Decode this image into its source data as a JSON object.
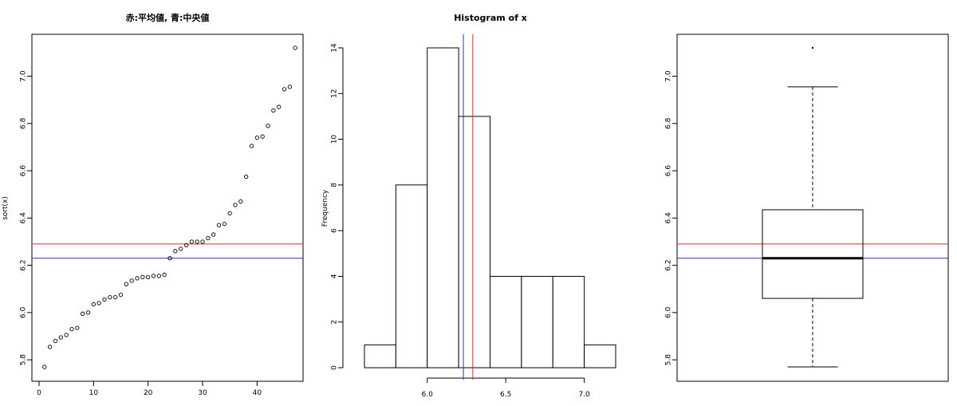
{
  "chart_data": [
    {
      "type": "scatter",
      "title": "赤:平均値, 青:中央値",
      "xlabel": "",
      "ylabel": "sort(x)",
      "xlim": [
        0,
        48
      ],
      "ylim": [
        5.77,
        7.12
      ],
      "x_ticks": [
        "0",
        "10",
        "20",
        "30",
        "40"
      ],
      "y_ticks": [
        "5.8",
        "6.0",
        "6.2",
        "6.4",
        "6.6",
        "6.8",
        "7.0"
      ],
      "x": [
        1,
        2,
        3,
        4,
        5,
        6,
        7,
        8,
        9,
        10,
        11,
        12,
        13,
        14,
        15,
        16,
        17,
        18,
        19,
        20,
        21,
        22,
        23,
        24,
        25,
        26,
        27,
        28,
        29,
        30,
        31,
        32,
        33,
        34,
        35,
        36,
        37,
        38,
        39,
        40,
        41,
        42,
        43,
        44,
        45,
        46,
        47
      ],
      "y": [
        5.77,
        5.855,
        5.88,
        5.895,
        5.905,
        5.93,
        5.935,
        5.995,
        6.0,
        6.035,
        6.04,
        6.055,
        6.065,
        6.065,
        6.075,
        6.12,
        6.135,
        6.145,
        6.15,
        6.15,
        6.155,
        6.155,
        6.16,
        6.23,
        6.26,
        6.27,
        6.285,
        6.3,
        6.3,
        6.3,
        6.315,
        6.33,
        6.37,
        6.375,
        6.42,
        6.455,
        6.47,
        6.575,
        6.705,
        6.74,
        6.745,
        6.79,
        6.855,
        6.87,
        6.945,
        6.955,
        7.12
      ],
      "hlines": {
        "mean": 6.29,
        "median": 6.23
      },
      "colors": {
        "mean": "#cc3333",
        "median": "#3333aa",
        "points": "#000000"
      }
    },
    {
      "type": "bar",
      "title": "Histogram of x",
      "xlabel": "",
      "ylabel": "Frequency",
      "bins": [
        [
          5.6,
          5.8
        ],
        [
          5.8,
          6.0
        ],
        [
          6.0,
          6.2
        ],
        [
          6.2,
          6.4
        ],
        [
          6.4,
          6.6
        ],
        [
          6.6,
          6.8
        ],
        [
          6.8,
          7.0
        ],
        [
          7.0,
          7.2
        ]
      ],
      "values": [
        1,
        8,
        14,
        11,
        4,
        4,
        4,
        1
      ],
      "xlim": [
        5.6,
        7.2
      ],
      "ylim": [
        0,
        14
      ],
      "x_ticks": [
        "6.0",
        "6.5",
        "7.0"
      ],
      "y_ticks": [
        "0",
        "2",
        "4",
        "6",
        "8",
        "10",
        "12",
        "14"
      ],
      "vlines": {
        "mean": 6.29,
        "median": 6.23
      },
      "colors": {
        "mean": "#cc3333",
        "median": "#3333aa",
        "bars": "#ffffff"
      }
    },
    {
      "type": "box",
      "title": "",
      "xlabel": "",
      "ylabel": "",
      "ylim": [
        5.77,
        7.12
      ],
      "y_ticks": [
        "5.8",
        "6.0",
        "6.2",
        "6.4",
        "6.6",
        "6.8",
        "7.0"
      ],
      "box": {
        "min": 5.77,
        "q1": 6.06,
        "median": 6.23,
        "q3": 6.435,
        "max": 6.955,
        "outliers": [
          7.12
        ]
      },
      "hlines": {
        "mean": 6.29,
        "median": 6.23
      },
      "colors": {
        "mean": "#cc3333",
        "median": "#3333aa",
        "median_bar": "#000000"
      }
    }
  ]
}
